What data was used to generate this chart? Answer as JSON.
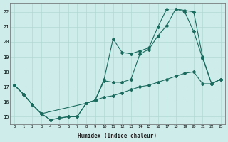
{
  "xlabel": "Humidex (Indice chaleur)",
  "bg_color": "#ceecea",
  "grid_color": "#b2d8d4",
  "line_color": "#1a6b5e",
  "xlim": [
    -0.5,
    23.5
  ],
  "ylim": [
    14.5,
    22.6
  ],
  "yticks": [
    15,
    16,
    17,
    18,
    19,
    20,
    21,
    22
  ],
  "xticks": [
    0,
    1,
    2,
    3,
    4,
    5,
    6,
    7,
    8,
    9,
    10,
    11,
    12,
    13,
    14,
    15,
    16,
    17,
    18,
    19,
    20,
    21,
    22,
    23
  ],
  "line1_x": [
    0,
    1,
    2,
    3,
    4,
    5,
    6,
    7,
    8,
    9,
    10,
    11,
    12,
    13,
    14,
    15,
    16,
    17,
    18,
    19,
    20,
    21,
    22,
    23
  ],
  "line1_y": [
    17.1,
    16.5,
    15.8,
    15.2,
    14.8,
    14.9,
    15.0,
    15.0,
    15.9,
    16.1,
    17.5,
    20.2,
    19.3,
    19.2,
    19.4,
    19.6,
    21.0,
    22.2,
    22.2,
    22.0,
    20.7,
    18.9,
    17.2,
    17.5
  ],
  "line2_x": [
    0,
    1,
    2,
    3,
    8,
    9,
    10,
    11,
    12,
    13,
    14,
    15,
    16,
    17,
    18,
    19,
    20,
    21,
    22,
    23
  ],
  "line2_y": [
    17.1,
    16.5,
    15.8,
    15.2,
    15.9,
    16.1,
    17.4,
    17.3,
    17.3,
    17.5,
    19.2,
    19.5,
    20.4,
    21.1,
    22.2,
    22.1,
    22.0,
    19.0,
    17.2,
    17.5
  ],
  "line3_x": [
    0,
    1,
    2,
    3,
    4,
    5,
    6,
    7,
    8,
    9,
    10,
    11,
    12,
    13,
    14,
    15,
    16,
    17,
    18,
    19,
    20,
    21,
    22,
    23
  ],
  "line3_y": [
    17.1,
    16.5,
    15.8,
    15.2,
    14.8,
    14.9,
    15.0,
    15.0,
    15.9,
    16.1,
    16.3,
    16.4,
    16.6,
    16.8,
    17.0,
    17.1,
    17.3,
    17.5,
    17.7,
    17.9,
    18.0,
    17.2,
    17.2,
    17.5
  ]
}
